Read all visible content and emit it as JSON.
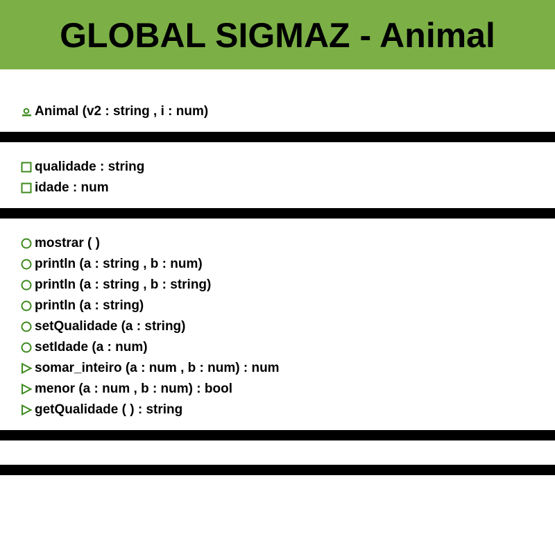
{
  "header": {
    "title": "GLOBAL SIGMAZ - Animal",
    "background_color": "#7cb046"
  },
  "icon_color": "#3c8a1e",
  "constructors": [
    {
      "label": "Animal (v2 : string , i : num)",
      "icon": "constructor-icon"
    }
  ],
  "fields": [
    {
      "label": "qualidade : string",
      "icon": "field-square-icon"
    },
    {
      "label": "idade : num",
      "icon": "field-square-icon"
    }
  ],
  "methods": [
    {
      "label": "mostrar ( )",
      "icon": "method-circle-icon"
    },
    {
      "label": "println (a : string , b : num)",
      "icon": "method-circle-icon"
    },
    {
      "label": "println (a : string , b : string)",
      "icon": "method-circle-icon"
    },
    {
      "label": "println (a : string)",
      "icon": "method-circle-icon"
    },
    {
      "label": "setQualidade (a : string)",
      "icon": "method-circle-icon"
    },
    {
      "label": "setIdade (a : num)",
      "icon": "method-circle-icon"
    },
    {
      "label": "somar_inteiro (a : num , b : num) : num",
      "icon": "function-triangle-icon"
    },
    {
      "label": "menor (a : num , b : num) : bool",
      "icon": "function-triangle-icon"
    },
    {
      "label": "getQualidade ( ) : string",
      "icon": "function-triangle-icon"
    }
  ]
}
